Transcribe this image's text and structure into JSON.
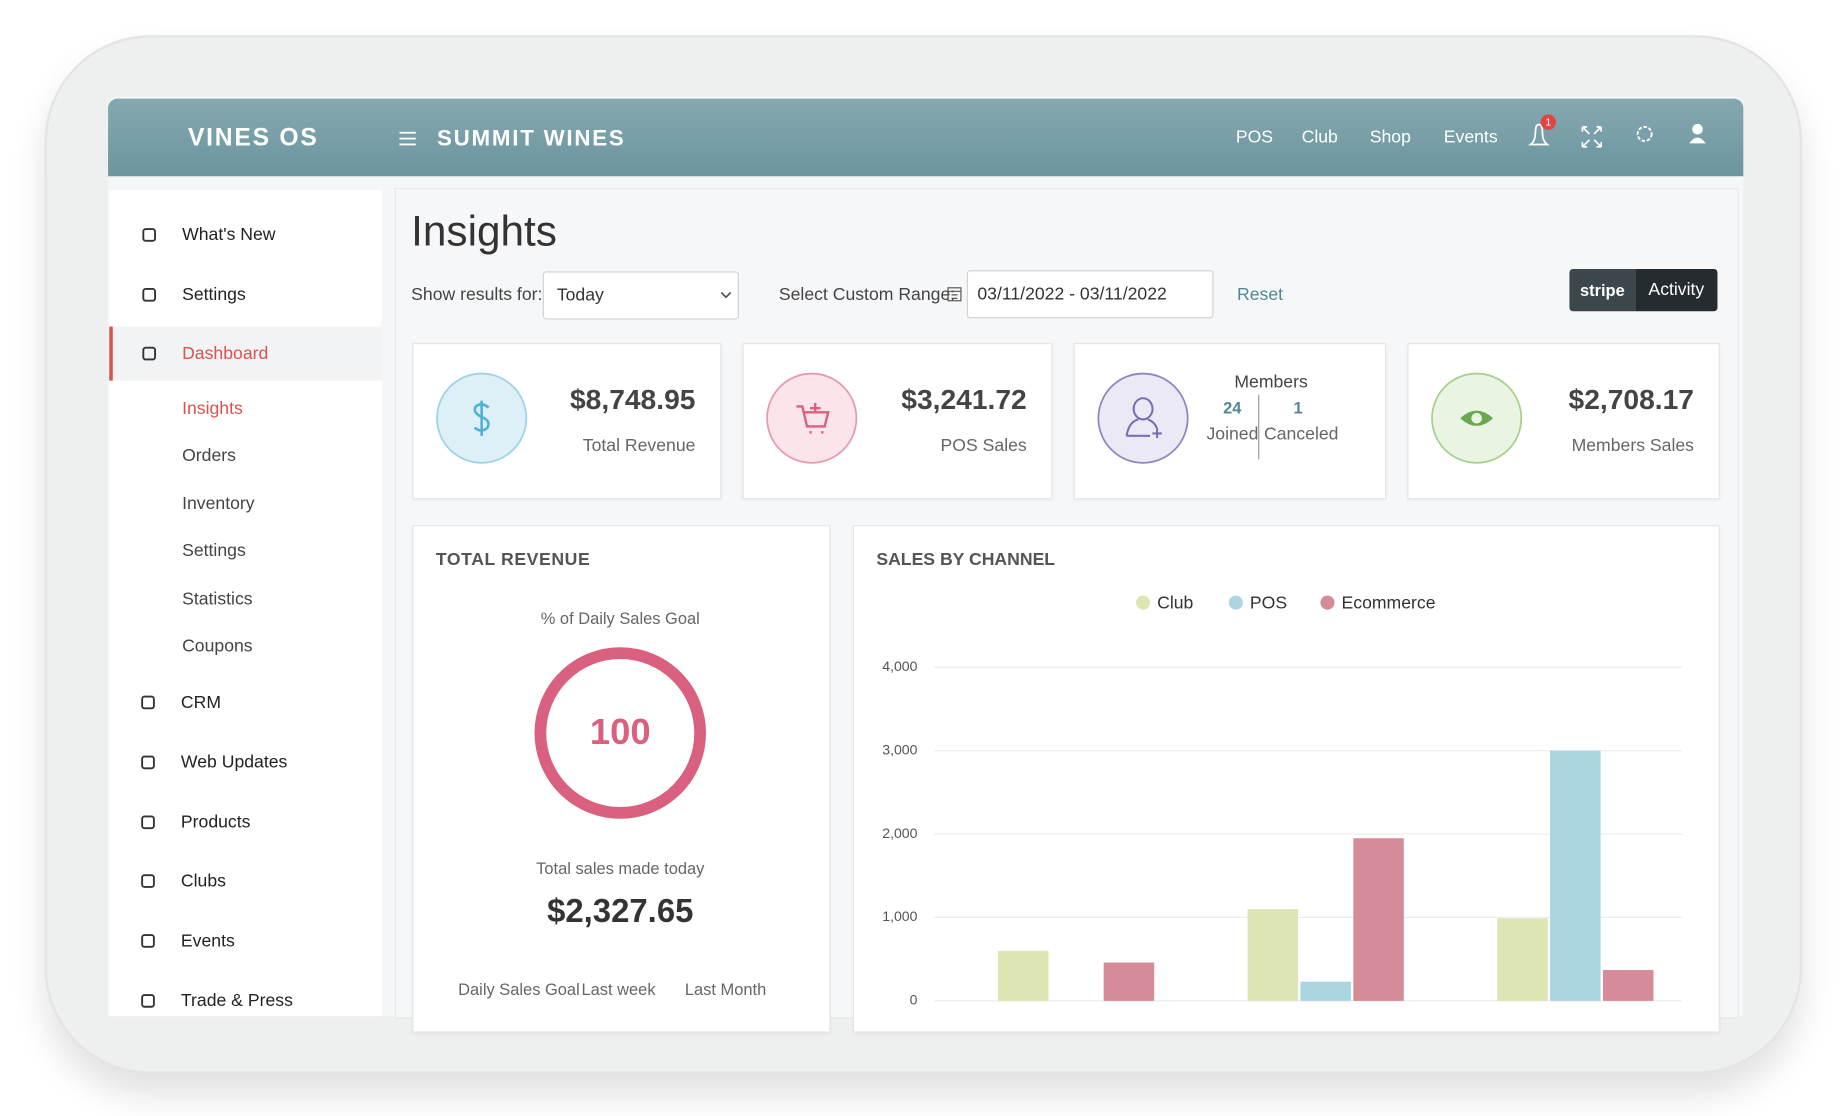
{
  "header": {
    "brand": "VINES OS",
    "store": "SUMMIT WINES",
    "nav": [
      "POS",
      "Club",
      "Shop",
      "Events"
    ],
    "notification_count": 1
  },
  "sidebar": {
    "items": [
      "What's New",
      "Settings",
      "Dashboard"
    ],
    "dashboard_items": [
      "Insights",
      "Orders",
      "Inventory",
      "Settings",
      "Statistics",
      "Coupons"
    ],
    "more_items": [
      "CRM",
      "Web Updates",
      "Products",
      "Clubs",
      "Events",
      "Trade & Press"
    ]
  },
  "page": {
    "title": "Insights",
    "filter_label": "Show results for:",
    "filter_value": "Today",
    "range_label": "Select Custom Range:",
    "range_value": "03/11/2022 - 03/11/2022",
    "reset": "Reset",
    "stripe": "stripe",
    "activity": "Activity"
  },
  "cards": [
    {
      "value": "$8,748.95",
      "label": "Total Revenue"
    },
    {
      "value": "$3,241.72",
      "label": "POS Sales"
    },
    {
      "title": "Members",
      "joined": 24,
      "joined_label": "Joined",
      "canceled": 1,
      "canceled_label": "Canceled"
    },
    {
      "value": "$2,708.17",
      "label": "Members Sales"
    }
  ],
  "total_revenue": {
    "title": "TOTAL REVENUE",
    "goal_label": "% of Daily Sales Goal",
    "goal_percent": 100,
    "today_label": "Total sales made today",
    "today_value": "$2,327.65",
    "columns": [
      "Daily Sales Goal",
      "Last week",
      "Last Month"
    ]
  },
  "chart_data": {
    "type": "bar",
    "title": "SALES BY CHANNEL",
    "categories": [
      null,
      null,
      null
    ],
    "series": [
      {
        "name": "Club",
        "color": "#dde5b3",
        "values": [
          600,
          1100,
          990
        ]
      },
      {
        "name": "POS",
        "color": "#acd5e2",
        "values": [
          0,
          230,
          3000
        ]
      },
      {
        "name": "Ecommerce",
        "color": "#d58c98",
        "values": [
          460,
          1950,
          370
        ]
      }
    ],
    "ylim": [
      0,
      4000
    ],
    "yticks": [
      0,
      {
        "value": 1000,
        "label": "1,000"
      },
      {
        "value": 2000,
        "label": "2,000"
      },
      {
        "value": 3000,
        "label": "3,000"
      },
      {
        "value": 4000,
        "label": "4,000"
      }
    ],
    "grid": true,
    "legend": "top"
  }
}
